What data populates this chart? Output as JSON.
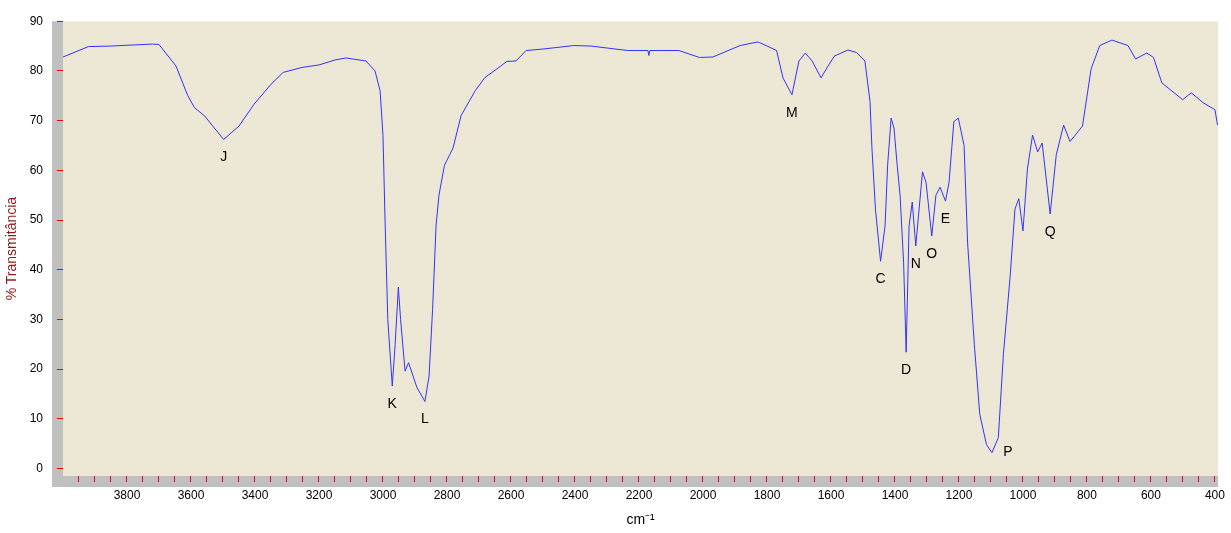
{
  "chart_data": {
    "type": "line",
    "xlabel": "cm⁻¹",
    "ylabel": "% Transmitância",
    "xlim": [
      4000,
      390
    ],
    "ylim": [
      -1.5,
      90
    ],
    "xticks": [
      {
        "value": 3950,
        "label": null
      },
      {
        "value": 3900,
        "label": null
      },
      {
        "value": 3850,
        "label": null
      },
      3800,
      {
        "value": 3750,
        "label": null
      },
      {
        "value": 3700,
        "label": null
      },
      {
        "value": 3650,
        "label": null
      },
      3600,
      {
        "value": 3550,
        "label": null
      },
      {
        "value": 3500,
        "label": null
      },
      {
        "value": 3450,
        "label": null
      },
      3400,
      {
        "value": 3350,
        "label": null
      },
      {
        "value": 3300,
        "label": null
      },
      {
        "value": 3250,
        "label": null
      },
      3200,
      {
        "value": 3150,
        "label": null
      },
      {
        "value": 3100,
        "label": null
      },
      {
        "value": 3050,
        "label": null
      },
      3000,
      {
        "value": 2950,
        "label": null
      },
      {
        "value": 2900,
        "label": null
      },
      {
        "value": 2850,
        "label": null
      },
      2800,
      {
        "value": 2750,
        "label": null
      },
      {
        "value": 2700,
        "label": null
      },
      {
        "value": 2650,
        "label": null
      },
      2600,
      {
        "value": 2550,
        "label": null
      },
      {
        "value": 2500,
        "label": null
      },
      {
        "value": 2450,
        "label": null
      },
      2400,
      {
        "value": 2350,
        "label": null
      },
      {
        "value": 2300,
        "label": null
      },
      {
        "value": 2250,
        "label": null
      },
      2200,
      {
        "value": 2150,
        "label": null
      },
      {
        "value": 2100,
        "label": null
      },
      {
        "value": 2050,
        "label": null
      },
      2000,
      {
        "value": 1950,
        "label": null
      },
      {
        "value": 1900,
        "label": null
      },
      {
        "value": 1850,
        "label": null
      },
      1800,
      {
        "value": 1750,
        "label": null
      },
      {
        "value": 1700,
        "label": null
      },
      {
        "value": 1650,
        "label": null
      },
      1600,
      {
        "value": 1550,
        "label": null
      },
      {
        "value": 1500,
        "label": null
      },
      {
        "value": 1450,
        "label": null
      },
      1400,
      {
        "value": 1350,
        "label": null
      },
      {
        "value": 1300,
        "label": null
      },
      {
        "value": 1250,
        "label": null
      },
      1200,
      {
        "value": 1150,
        "label": null
      },
      {
        "value": 1100,
        "label": null
      },
      {
        "value": 1050,
        "label": null
      },
      1000,
      {
        "value": 950,
        "label": null
      },
      {
        "value": 900,
        "label": null
      },
      {
        "value": 850,
        "label": null
      },
      800,
      {
        "value": 750,
        "label": null
      },
      {
        "value": 700,
        "label": null
      },
      {
        "value": 650,
        "label": null
      },
      600,
      {
        "value": 550,
        "label": null
      },
      {
        "value": 500,
        "label": null
      },
      {
        "value": 450,
        "label": null
      },
      400
    ],
    "yticks": [
      0,
      10,
      20,
      30,
      40,
      50,
      60,
      70,
      80,
      90
    ],
    "grid": false,
    "legend": false,
    "marker": "none",
    "line_style": "solid",
    "series": [
      {
        "color": "#3333ff",
        "x": [
          4000,
          3920,
          3850,
          3720,
          3700,
          3647,
          3610,
          3589,
          3557,
          3498,
          3450,
          3403,
          3350,
          3312,
          3253,
          3200,
          3150,
          3116,
          3053,
          3025,
          3009,
          3000,
          2994,
          2985,
          2971,
          2962,
          2952,
          2945,
          2931,
          2920,
          2894,
          2869,
          2856,
          2845,
          2834,
          2825,
          2808,
          2781,
          2756,
          2712,
          2681,
          2644,
          2613,
          2584,
          2553,
          2500,
          2404,
          2350,
          2235,
          2172,
          2169,
          2166,
          2075,
          2011,
          1969,
          1884,
          1831,
          1823,
          1770,
          1750,
          1722,
          1700,
          1680,
          1659,
          1631,
          1609,
          1589,
          1547,
          1520,
          1494,
          1478,
          1472,
          1461,
          1445,
          1431,
          1423,
          1412,
          1403,
          1394,
          1384,
          1373,
          1365,
          1356,
          1346,
          1335,
          1314,
          1303,
          1285,
          1272,
          1259,
          1242,
          1231,
          1216,
          1202,
          1184,
          1173,
          1152,
          1135,
          1114,
          1097,
          1077,
          1061,
          1040,
          1025,
          1013,
          1000,
          986,
          970,
          954,
          940,
          915,
          896,
          873,
          853,
          824,
          814,
          787,
          760,
          722,
          672,
          648,
          613,
          592,
          566,
          501,
          474,
          437,
          400,
          392
        ],
        "values": [
          82.8,
          84.9,
          85,
          85.4,
          85.3,
          81,
          75,
          72.6,
          70.9,
          66.2,
          68.9,
          73.3,
          77.3,
          79.7,
          80.7,
          81.2,
          82.2,
          82.6,
          82,
          80,
          76,
          67,
          51,
          30,
          16.6,
          25,
          36.5,
          30,
          19.6,
          21.3,
          16.3,
          13.5,
          18.6,
          32,
          49,
          55,
          61,
          64.5,
          71,
          76,
          78.7,
          80.4,
          81.9,
          82,
          84.1,
          84.4,
          85.1,
          85,
          84.1,
          84.1,
          83.1,
          84.1,
          84.1,
          82.7,
          82.8,
          85.1,
          85.8,
          85.7,
          84.1,
          78.6,
          75.2,
          82,
          83.6,
          82,
          78.6,
          81,
          83,
          84.2,
          83.7,
          82,
          73.9,
          64.5,
          52.2,
          41.7,
          48.8,
          61,
          70.5,
          68.5,
          61.7,
          55,
          41.4,
          23.4,
          48.8,
          53.6,
          44.8,
          59.7,
          57.6,
          46.8,
          55,
          56.6,
          53.8,
          57.6,
          69.8,
          70.5,
          65,
          45.4,
          25,
          10.9,
          4.8,
          3.2,
          6.2,
          23.1,
          38.7,
          52.2,
          54.3,
          47.8,
          60.3,
          67.1,
          63.7,
          65.5,
          51.2,
          63.1,
          69.1,
          65.8,
          68.1,
          68.9,
          80.4,
          85.1,
          86.2,
          85.1,
          82.4,
          83.6,
          82.7,
          77.6,
          74.2,
          75.6,
          73.6,
          72.2,
          69.1
        ]
      }
    ],
    "annotations": [
      {
        "text": "J",
        "x": 3498,
        "y": 66.2
      },
      {
        "text": "K",
        "x": 2971,
        "y": 16.6
      },
      {
        "text": "L",
        "x": 2869,
        "y": 13.5
      },
      {
        "text": "M",
        "x": 1722,
        "y": 75.2
      },
      {
        "text": "C",
        "x": 1445,
        "y": 41.7
      },
      {
        "text": "D",
        "x": 1365,
        "y": 23.4
      },
      {
        "text": "N",
        "x": 1335,
        "y": 44.8
      },
      {
        "text": "O",
        "x": 1285,
        "y": 46.8
      },
      {
        "text": "E",
        "x": 1242,
        "y": 53.8
      },
      {
        "text": "P",
        "x": 1097,
        "y": 3.2
      },
      {
        "text": "Q",
        "x": 915,
        "y": 51.2
      }
    ]
  }
}
